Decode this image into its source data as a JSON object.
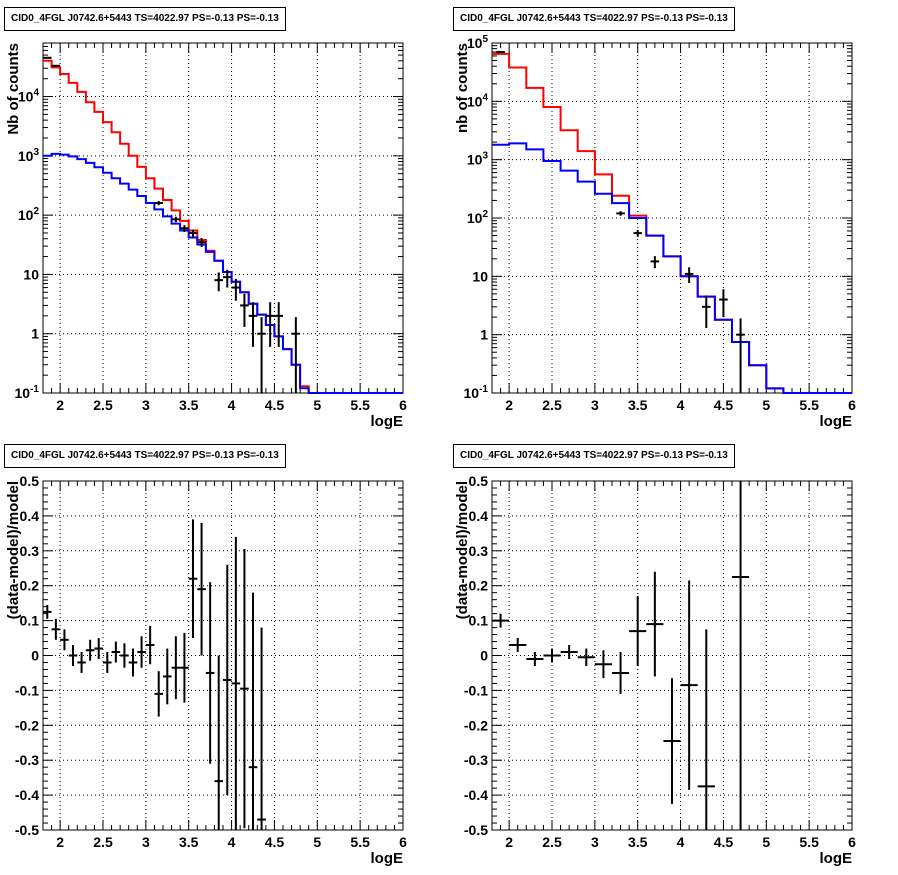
{
  "chart_data": [
    {
      "type": "step-line",
      "title": "CID0_4FGL J0742.6+5443 TS=4022.97 PS=-0.13 PS=-0.13",
      "xlabel": "logE",
      "ylabel": "Nb of counts",
      "xlim": [
        1.8,
        6.0
      ],
      "ylim": [
        0.1,
        80000
      ],
      "yscale": "log",
      "grid": true,
      "x_ticks": [
        "2",
        "2.5",
        "3",
        "3.5",
        "4",
        "4.5",
        "5",
        "5.5",
        "6"
      ],
      "y_ticks": [
        "10^-1",
        "1",
        "10",
        "10^2",
        "10^3",
        "10^4"
      ],
      "bin_edges": [
        1.8,
        1.9,
        2.0,
        2.1,
        2.2,
        2.3,
        2.4,
        2.5,
        2.6,
        2.7,
        2.8,
        2.9,
        3.0,
        3.1,
        3.2,
        3.3,
        3.4,
        3.5,
        3.6,
        3.7,
        3.8,
        3.9,
        4.0,
        4.1,
        4.2,
        4.3,
        4.4,
        4.5,
        4.6,
        4.7,
        4.8,
        4.9,
        5.0,
        5.1,
        5.2,
        5.3,
        5.4,
        5.5,
        5.6,
        5.7,
        5.8,
        5.9,
        6.0
      ],
      "series": [
        {
          "color": "#ff0000",
          "values": [
            40000,
            31000,
            24000,
            17000,
            12000,
            8000,
            5500,
            3700,
            2500,
            1600,
            1000,
            650,
            420,
            280,
            180,
            120,
            80,
            55,
            38,
            25,
            17,
            11,
            7.5,
            5,
            3.2,
            2.1,
            1.4,
            0.9,
            0.55,
            0.3,
            0.13,
            0.1,
            0.1,
            0.1,
            0.1,
            0.1,
            0.1,
            0.1,
            0.1,
            0.1,
            0.1,
            0.1
          ]
        },
        {
          "color": "#0000ff",
          "values": [
            1000,
            1080,
            1050,
            980,
            880,
            760,
            640,
            520,
            420,
            340,
            270,
            210,
            160,
            125,
            95,
            72,
            55,
            42,
            32,
            24,
            17,
            11,
            7.5,
            5,
            3.2,
            2.1,
            1.4,
            0.9,
            0.55,
            0.3,
            0.12,
            0.1,
            0.1,
            0.1,
            0.1,
            0.1,
            0.1,
            0.1,
            0.1,
            0.1,
            0.1,
            0.1
          ]
        }
      ],
      "data_points": [
        {
          "x": 1.85,
          "y": 45000,
          "err": 212
        },
        {
          "x": 1.95,
          "y": 33000,
          "err": 182
        },
        {
          "x": 3.15,
          "y": 160,
          "err": 13
        },
        {
          "x": 3.35,
          "y": 85,
          "err": 9
        },
        {
          "x": 3.45,
          "y": 60,
          "err": 8
        },
        {
          "x": 3.55,
          "y": 50,
          "err": 7
        },
        {
          "x": 3.65,
          "y": 35,
          "err": 6
        },
        {
          "x": 3.85,
          "y": 8,
          "err": 2.8
        },
        {
          "x": 3.95,
          "y": 9,
          "err": 3
        },
        {
          "x": 4.05,
          "y": 6,
          "err": 2.4
        },
        {
          "x": 4.15,
          "y": 3,
          "err": 1.7
        },
        {
          "x": 4.25,
          "y": 2,
          "err": 1.4
        },
        {
          "x": 4.35,
          "y": 1,
          "err": 0.9
        },
        {
          "x": 4.45,
          "y": 2,
          "err": 1.4
        },
        {
          "x": 4.55,
          "y": 2,
          "err": 1.4
        },
        {
          "x": 4.75,
          "y": 1,
          "err": 0.9
        }
      ]
    },
    {
      "type": "step-line",
      "title": "CID0_4FGL J0742.6+5443 TS=4022.97 PS=-0.13 PS=-0.13",
      "xlabel": "logE",
      "ylabel": "nb of counts",
      "xlim": [
        1.8,
        6.0
      ],
      "ylim": [
        0.1,
        100000
      ],
      "yscale": "log",
      "grid": true,
      "x_ticks": [
        "2",
        "2.5",
        "3",
        "3.5",
        "4",
        "4.5",
        "5",
        "5.5",
        "6"
      ],
      "y_ticks": [
        "10^-1",
        "1",
        "10",
        "10^2",
        "10^3",
        "10^4",
        "10^5"
      ],
      "bin_edges": [
        1.8,
        2.0,
        2.2,
        2.4,
        2.6,
        2.8,
        3.0,
        3.2,
        3.4,
        3.6,
        3.8,
        4.0,
        4.2,
        4.4,
        4.6,
        4.8,
        5.0,
        5.2,
        5.4,
        5.6,
        5.8,
        6.0
      ],
      "series": [
        {
          "color": "#ff0000",
          "values": [
            65000,
            38000,
            17000,
            8000,
            3200,
            1400,
            560,
            240,
            110,
            50,
            22,
            10,
            4.5,
            1.8,
            0.75,
            0.3,
            0.12,
            0.1,
            0.1,
            0.1,
            0.1
          ]
        },
        {
          "color": "#0000ff",
          "values": [
            1800,
            1900,
            1500,
            950,
            650,
            420,
            260,
            180,
            100,
            50,
            22,
            10,
            4.5,
            1.8,
            0.75,
            0.3,
            0.12,
            0.1,
            0.1,
            0.1,
            0.1
          ]
        }
      ],
      "data_points": [
        {
          "x": 1.9,
          "y": 70000,
          "err": 265
        },
        {
          "x": 3.3,
          "y": 120,
          "err": 11
        },
        {
          "x": 3.5,
          "y": 55,
          "err": 7.4
        },
        {
          "x": 3.7,
          "y": 18,
          "err": 4.2
        },
        {
          "x": 4.1,
          "y": 11,
          "err": 3.3
        },
        {
          "x": 4.3,
          "y": 3,
          "err": 1.7
        },
        {
          "x": 4.5,
          "y": 4,
          "err": 2
        },
        {
          "x": 4.7,
          "y": 1,
          "err": 0.9
        }
      ]
    },
    {
      "type": "scatter",
      "title": "CID0_4FGL J0742.6+5443 TS=4022.97 PS=-0.13 PS=-0.13",
      "xlabel": "logE",
      "ylabel": "(data-model)/model",
      "xlim": [
        1.8,
        6.0
      ],
      "ylim": [
        -0.5,
        0.5
      ],
      "grid": true,
      "x_ticks": [
        "2",
        "2.5",
        "3",
        "3.5",
        "4",
        "4.5",
        "5",
        "5.5",
        "6"
      ],
      "y_ticks": [
        "-0.5",
        "-0.4",
        "-0.3",
        "-0.2",
        "-0.1",
        "0",
        "0.1",
        "0.2",
        "0.3",
        "0.4",
        "0.5"
      ],
      "bin_width": 0.1,
      "points": [
        {
          "x": 1.85,
          "y": 0.125,
          "err": 0.02
        },
        {
          "x": 1.95,
          "y": 0.075,
          "err": 0.03
        },
        {
          "x": 2.05,
          "y": 0.045,
          "err": 0.03
        },
        {
          "x": 2.15,
          "y": 0.0,
          "err": 0.03
        },
        {
          "x": 2.25,
          "y": -0.02,
          "err": 0.03
        },
        {
          "x": 2.35,
          "y": 0.015,
          "err": 0.03
        },
        {
          "x": 2.45,
          "y": 0.02,
          "err": 0.03
        },
        {
          "x": 2.55,
          "y": -0.02,
          "err": 0.03
        },
        {
          "x": 2.65,
          "y": 0.01,
          "err": 0.03
        },
        {
          "x": 2.75,
          "y": 0.0,
          "err": 0.035
        },
        {
          "x": 2.85,
          "y": -0.02,
          "err": 0.04
        },
        {
          "x": 2.95,
          "y": 0.01,
          "err": 0.045
        },
        {
          "x": 3.05,
          "y": 0.03,
          "err": 0.055
        },
        {
          "x": 3.15,
          "y": -0.11,
          "err": 0.065
        },
        {
          "x": 3.25,
          "y": -0.06,
          "err": 0.08
        },
        {
          "x": 3.35,
          "y": -0.035,
          "err": 0.09
        },
        {
          "x": 3.45,
          "y": -0.035,
          "err": 0.1
        },
        {
          "x": 3.55,
          "y": 0.22,
          "err": 0.17
        },
        {
          "x": 3.65,
          "y": 0.19,
          "err": 0.19
        },
        {
          "x": 3.75,
          "y": -0.05,
          "err": 0.26
        },
        {
          "x": 3.85,
          "y": -0.36,
          "err": 0.36
        },
        {
          "x": 3.95,
          "y": -0.07,
          "err": 0.33
        },
        {
          "x": 4.05,
          "y": -0.08,
          "err": 0.42
        },
        {
          "x": 4.15,
          "y": -0.095,
          "err": 0.4
        },
        {
          "x": 4.25,
          "y": -0.32,
          "err": 0.5
        },
        {
          "x": 4.35,
          "y": -0.47,
          "err": 0.55
        }
      ]
    },
    {
      "type": "scatter",
      "title": "CID0_4FGL J0742.6+5443 TS=4022.97 PS=-0.13 PS=-0.13",
      "xlabel": "logE",
      "ylabel": "(data-model)/model",
      "xlim": [
        1.8,
        6.0
      ],
      "ylim": [
        -0.5,
        0.5
      ],
      "grid": true,
      "x_ticks": [
        "2",
        "2.5",
        "3",
        "3.5",
        "4",
        "4.5",
        "5",
        "5.5",
        "6"
      ],
      "y_ticks": [
        "-0.5",
        "-0.4",
        "-0.3",
        "-0.2",
        "-0.1",
        "0",
        "0.1",
        "0.2",
        "0.3",
        "0.4",
        "0.5"
      ],
      "bin_width": 0.2,
      "points": [
        {
          "x": 1.9,
          "y": 0.1,
          "err": 0.02
        },
        {
          "x": 2.1,
          "y": 0.03,
          "err": 0.02
        },
        {
          "x": 2.3,
          "y": -0.01,
          "err": 0.02
        },
        {
          "x": 2.5,
          "y": 0.0,
          "err": 0.02
        },
        {
          "x": 2.7,
          "y": 0.01,
          "err": 0.02
        },
        {
          "x": 2.9,
          "y": -0.005,
          "err": 0.025
        },
        {
          "x": 3.1,
          "y": -0.025,
          "err": 0.04
        },
        {
          "x": 3.3,
          "y": -0.05,
          "err": 0.06
        },
        {
          "x": 3.5,
          "y": 0.07,
          "err": 0.1
        },
        {
          "x": 3.7,
          "y": 0.09,
          "err": 0.15
        },
        {
          "x": 3.9,
          "y": -0.245,
          "err": 0.18
        },
        {
          "x": 4.1,
          "y": -0.085,
          "err": 0.3
        },
        {
          "x": 4.3,
          "y": -0.375,
          "err": 0.45
        },
        {
          "x": 4.7,
          "y": 0.225,
          "err": 1.0
        }
      ]
    }
  ]
}
